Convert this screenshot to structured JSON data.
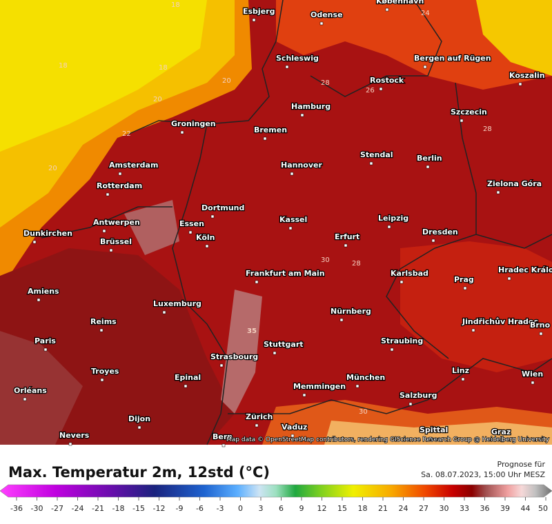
{
  "map": {
    "cities": [
      "Esbjerg",
      "Odense",
      "København",
      "Schleswig",
      "Bergen auf Rügen",
      "Rostock",
      "Koszalin",
      "Hamburg",
      "Szczecin",
      "Groningen",
      "Bremen",
      "Amsterdam",
      "Hannover",
      "Stendal",
      "Berlin",
      "Zielona Góra",
      "Rotterdam",
      "Dortmund",
      "Antwerpen",
      "Essen",
      "Kassel",
      "Leipzig",
      "Dunkirchen",
      "Brüssel",
      "Köln",
      "Erfurt",
      "Dresden",
      "Frankfurt am Main",
      "Karlsbad",
      "Prag",
      "Hradec Králové",
      "Amiens",
      "Luxemburg",
      "Nürnberg",
      "Reims",
      "Jindřichův Hradec",
      "Paris",
      "Stuttgart",
      "Straubing",
      "Brno",
      "Strasbourg",
      "Troyes",
      "Epinal",
      "München",
      "Linz",
      "Wien",
      "Orléans",
      "Memmingen",
      "Salzburg",
      "Dijon",
      "Zürich",
      "Vaduz",
      "Nevers",
      "Bern",
      "Spittal",
      "Graz"
    ],
    "contour_labels": [
      "18",
      "18",
      "18",
      "20",
      "20",
      "20",
      "22",
      "24",
      "26",
      "28",
      "28",
      "28",
      "30",
      "30",
      "35"
    ],
    "attribution": "Map data © OpenStreetMap contributors, rendering GIScience Research Group @ Heidelberg University"
  },
  "legend": {
    "title": "Max. Temperatur 2m, 12std (°C)",
    "forecast_label": "Prognose für",
    "forecast_time": "Sa. 08.07.2023, 15:00 Uhr MESZ",
    "ticks": [
      -36,
      -30,
      -27,
      -24,
      -21,
      -18,
      -15,
      -12,
      -9,
      -6,
      -3,
      0,
      3,
      6,
      9,
      12,
      15,
      18,
      21,
      24,
      27,
      30,
      33,
      36,
      39,
      44,
      50
    ]
  }
}
